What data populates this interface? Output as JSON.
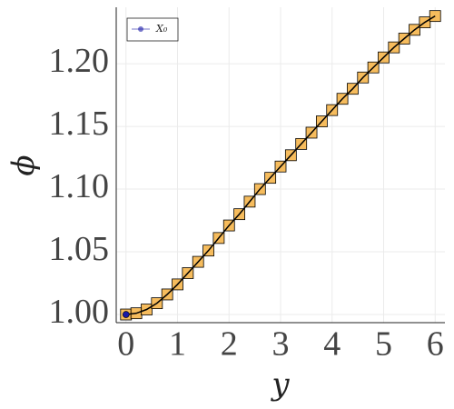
{
  "chart_data": {
    "type": "line",
    "xlabel": "y",
    "ylabel": "ϕ",
    "x": [
      0,
      0.2,
      0.4,
      0.6,
      0.8,
      1.0,
      1.2,
      1.4,
      1.6,
      1.8,
      2.0,
      2.2,
      2.4,
      2.6,
      2.8,
      3.0,
      3.2,
      3.4,
      3.6,
      3.8,
      4.0,
      4.2,
      4.4,
      4.6,
      4.8,
      5.0,
      5.2,
      5.4,
      5.6,
      5.8,
      6.0
    ],
    "series": [
      {
        "color": "#000000",
        "marker_color": "#f5b041",
        "values": [
          1.0,
          1.001,
          1.004,
          1.009,
          1.016,
          1.024,
          1.033,
          1.042,
          1.051,
          1.061,
          1.071,
          1.08,
          1.09,
          1.1,
          1.109,
          1.118,
          1.127,
          1.136,
          1.145,
          1.154,
          1.163,
          1.172,
          1.18,
          1.189,
          1.197,
          1.205,
          1.213,
          1.22,
          1.227,
          1.233,
          1.238
        ]
      },
      {
        "name": "X₀",
        "color": "#1a1aa6",
        "x": [
          0
        ],
        "values": [
          1.0
        ]
      }
    ],
    "xlim": [
      -0.19,
      6.19
    ],
    "ylim": [
      0.9935,
      1.245
    ],
    "xticks": [
      0,
      1,
      2,
      3,
      4,
      5,
      6
    ],
    "yticks": [
      {
        "value": 1.0,
        "label": "1.00"
      },
      {
        "value": 1.05,
        "label": "1.05"
      },
      {
        "value": 1.1,
        "label": "1.10"
      },
      {
        "value": 1.15,
        "label": "1.15"
      },
      {
        "value": 1.2,
        "label": "1.20"
      }
    ],
    "grid": true,
    "legend": "top-left"
  }
}
